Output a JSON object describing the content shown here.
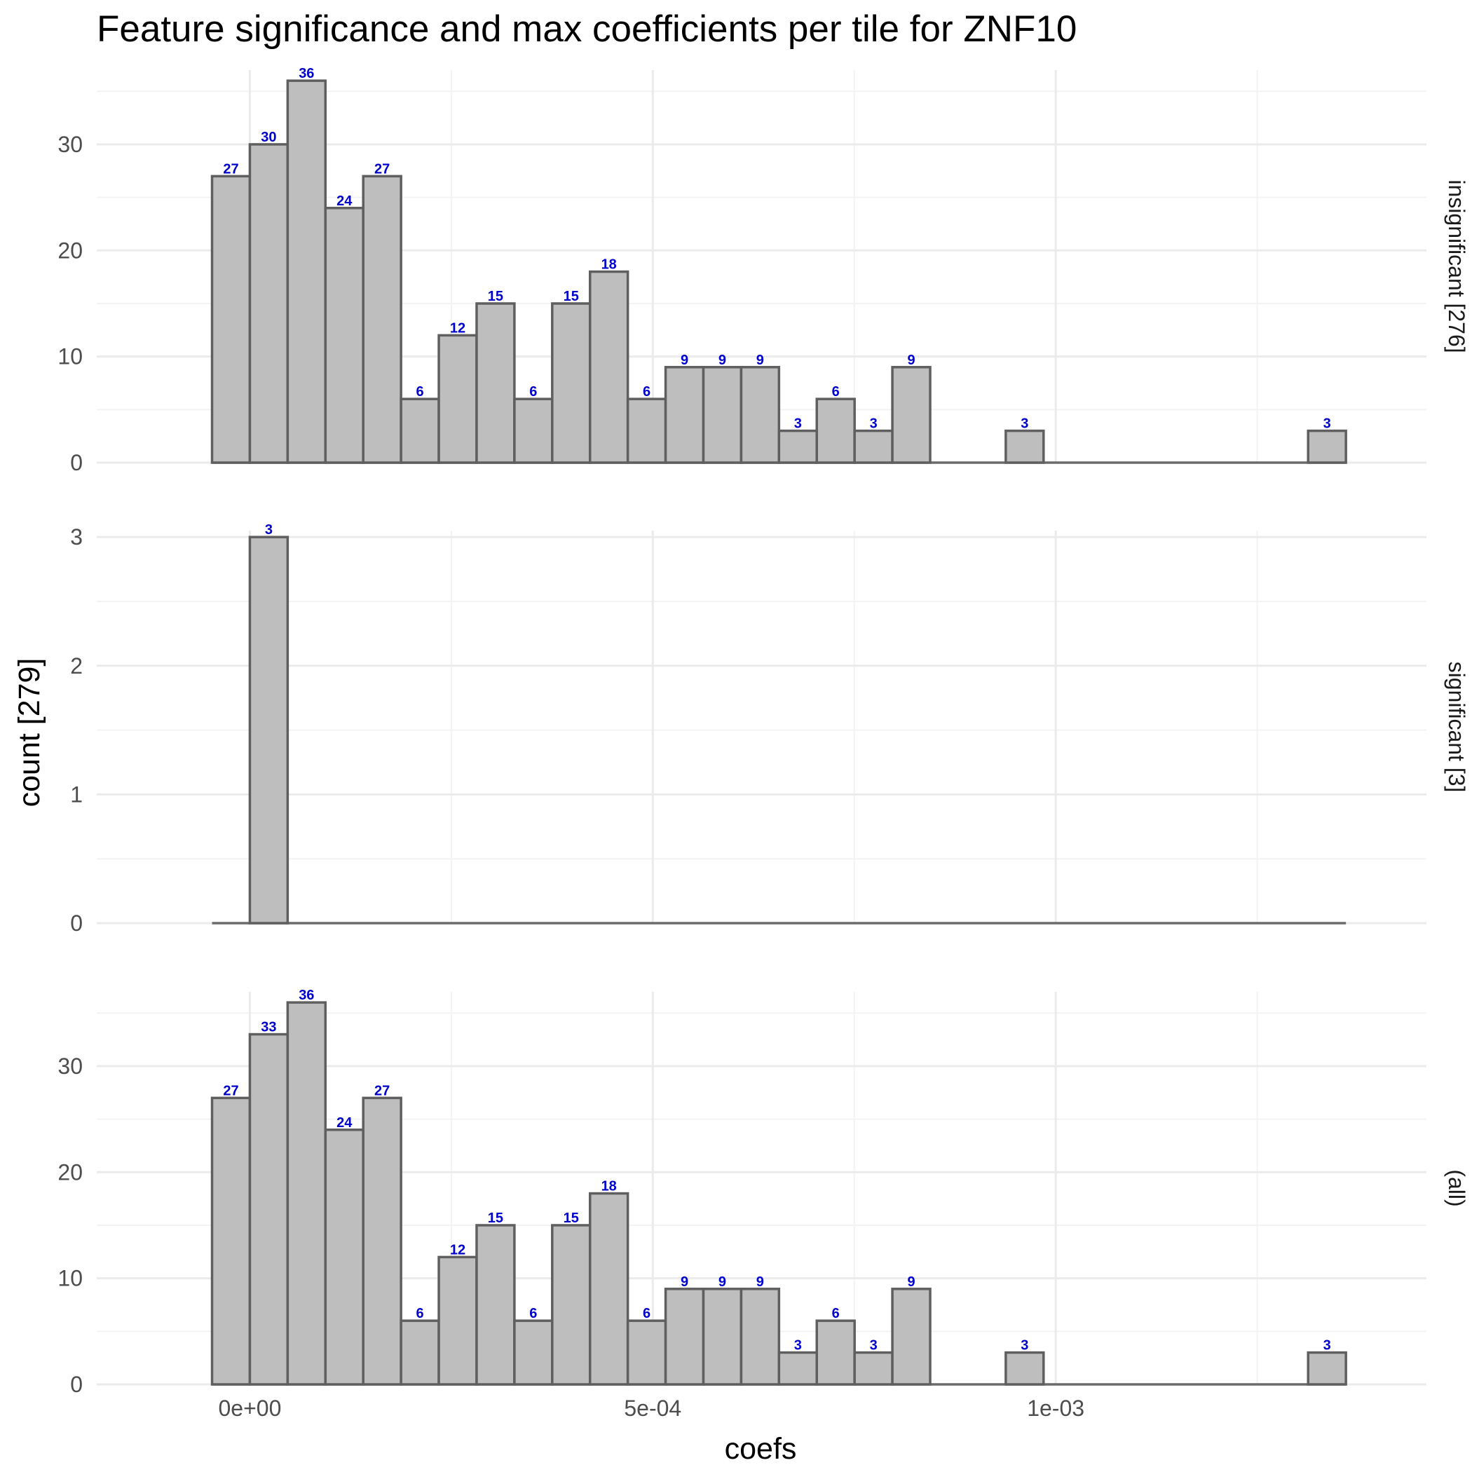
{
  "chart_data": {
    "type": "bar",
    "title": "Feature significance and max coefficients per tile for ZNF10",
    "xlabel": "coefs",
    "ylabel": "count [279]",
    "x_ticks": [
      "0e+00",
      "5e-04",
      "1e-03"
    ],
    "x_tick_values": [
      0,
      0.0005,
      0.001
    ],
    "xlim": [
      -0.00019,
      0.00146
    ],
    "bin_width": 4.69e-05,
    "bin_start": -4.69e-05,
    "grid": true,
    "facets": [
      {
        "label": "insignificant [276]",
        "ylim": [
          0,
          37
        ],
        "y_ticks": [
          0,
          10,
          20,
          30
        ],
        "values": [
          27,
          30,
          36,
          24,
          27,
          6,
          12,
          15,
          6,
          15,
          18,
          6,
          9,
          9,
          9,
          3,
          6,
          3,
          9,
          0,
          0,
          3,
          0,
          0,
          0,
          0,
          0,
          0,
          0,
          3
        ]
      },
      {
        "label": "significant [3]",
        "ylim": [
          0,
          3.05
        ],
        "y_ticks": [
          0,
          1,
          2,
          3
        ],
        "values": [
          0,
          3,
          0,
          0,
          0,
          0,
          0,
          0,
          0,
          0,
          0,
          0,
          0,
          0,
          0,
          0,
          0,
          0,
          0,
          0,
          0,
          0,
          0,
          0,
          0,
          0,
          0,
          0,
          0,
          0
        ]
      },
      {
        "label": "(all)",
        "ylim": [
          0,
          37
        ],
        "y_ticks": [
          0,
          10,
          20,
          30
        ],
        "values": [
          27,
          33,
          36,
          24,
          27,
          6,
          12,
          15,
          6,
          15,
          18,
          6,
          9,
          9,
          9,
          3,
          6,
          3,
          9,
          0,
          0,
          3,
          0,
          0,
          0,
          0,
          0,
          0,
          0,
          3
        ]
      }
    ]
  }
}
